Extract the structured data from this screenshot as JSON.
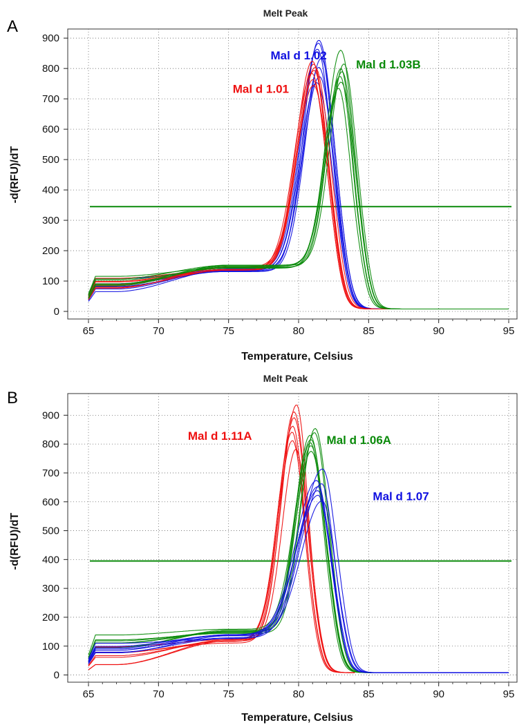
{
  "chart_data": [
    {
      "panel_label": "A",
      "type": "line",
      "title": "Melt Peak",
      "xlabel": "Temperature, Celsius",
      "ylabel": "-d(RFU)/dT",
      "xlim": [
        65,
        95
      ],
      "ylim": [
        -25,
        930
      ],
      "x_ticks": [
        65,
        70,
        75,
        80,
        85,
        90,
        95
      ],
      "y_ticks": [
        0,
        100,
        200,
        300,
        400,
        500,
        600,
        700,
        800,
        900
      ],
      "grid": true,
      "threshold": {
        "value": 345,
        "color": "#0a8a0a"
      },
      "series": [
        {
          "name": "Mal d 1.02",
          "color": "#1010e0",
          "peak_x": 81.5,
          "peak_y": [
            740,
            760,
            790,
            820,
            850,
            870,
            880
          ],
          "baseline": [
            70,
            85,
            95,
            110
          ],
          "mid": [
            130,
            140
          ],
          "left_width": 1.8,
          "right_width": 1.5,
          "offset": 0,
          "end_x": 95
        },
        {
          "name": "Mal d 1.01",
          "color": "#ee1010",
          "peak_x": 81.0,
          "peak_y": [
            730,
            750,
            770,
            780,
            790,
            800,
            810
          ],
          "baseline": [
            80,
            90,
            100,
            110
          ],
          "mid": [
            135,
            150
          ],
          "left_width": 1.8,
          "right_width": 1.5,
          "offset": 0,
          "end_x": 91
        },
        {
          "name": "Mal d 1.03B",
          "color": "#0a8a0a",
          "peak_x": 83.0,
          "peak_y": [
            720,
            740,
            760,
            775,
            785,
            800,
            845
          ],
          "baseline": [
            85,
            95,
            105,
            115
          ],
          "mid": [
            140,
            155
          ],
          "left_width": 1.6,
          "right_width": 1.3,
          "offset": 0,
          "end_x": 95
        }
      ],
      "labels": [
        {
          "text": "Mal d 1.02",
          "color": "#1010e0",
          "x": 78.0,
          "y": 830
        },
        {
          "text": "Mal d 1.01",
          "color": "#ee1010",
          "x": 75.3,
          "y": 720
        },
        {
          "text": "Mal d 1.03B",
          "color": "#0a8a0a",
          "x": 84.1,
          "y": 800
        }
      ]
    },
    {
      "panel_label": "B",
      "type": "line",
      "title": "Melt Peak",
      "xlabel": "Temperature, Celsius",
      "ylabel": "-d(RFU)/dT",
      "xlim": [
        65,
        95
      ],
      "ylim": [
        -25,
        975
      ],
      "x_ticks": [
        65,
        70,
        75,
        80,
        85,
        90,
        95
      ],
      "y_ticks": [
        0,
        100,
        200,
        300,
        400,
        500,
        600,
        700,
        800,
        900
      ],
      "grid": true,
      "threshold": {
        "value": 395,
        "color": "#0a8a0a"
      },
      "series": [
        {
          "name": "Mal d 1.11A",
          "color": "#ee1010",
          "peak_x": 79.7,
          "peak_y": [
            770,
            800,
            830,
            850,
            880,
            900,
            925
          ],
          "baseline": [
            40,
            65,
            80,
            95
          ],
          "mid": [
            110,
            125
          ],
          "left_width": 1.6,
          "right_width": 1.3,
          "offset": 0,
          "end_x": 84
        },
        {
          "name": "Mal d 1.06A",
          "color": "#0a8a0a",
          "peak_x": 81.0,
          "peak_y": [
            760,
            780,
            790,
            800,
            815,
            825,
            840
          ],
          "baseline": [
            95,
            110,
            120,
            135
          ],
          "mid": [
            135,
            160
          ],
          "left_width": 1.7,
          "right_width": 1.4,
          "offset": 0,
          "end_x": 95
        },
        {
          "name": "Mal d 1.07",
          "color": "#1010e0",
          "peak_x": 81.5,
          "peak_y": [
            590,
            610,
            625,
            640,
            650,
            660,
            700
          ],
          "baseline": [
            75,
            85,
            95,
            105
          ],
          "mid": [
            125,
            145
          ],
          "left_width": 2.4,
          "right_width": 1.3,
          "offset": 0,
          "end_x": 95
        }
      ],
      "labels": [
        {
          "text": "Mal d 1.11A",
          "color": "#ee1010",
          "x": 72.1,
          "y": 815
        },
        {
          "text": "Mal d 1.06A",
          "color": "#0a8a0a",
          "x": 82.0,
          "y": 800
        },
        {
          "text": "Mal d 1.07",
          "color": "#1010e0",
          "x": 85.3,
          "y": 605
        }
      ]
    }
  ]
}
